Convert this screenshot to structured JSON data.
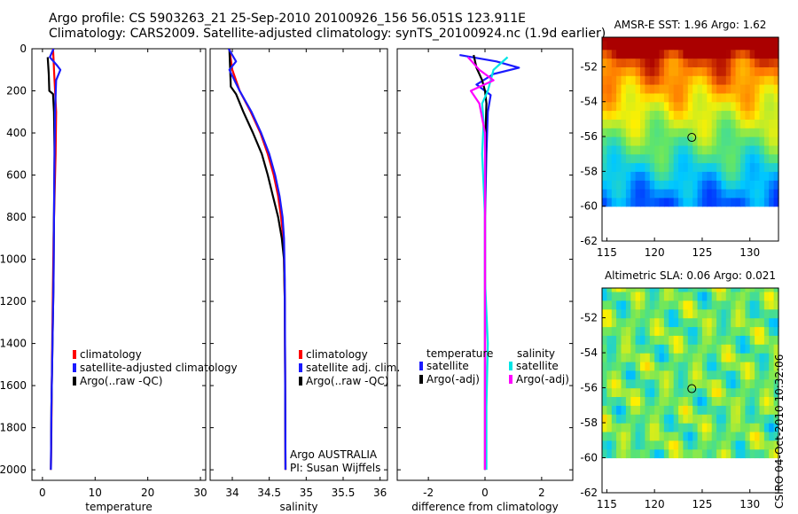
{
  "header": {
    "line1": "Argo profile: CS 5903263_21 25-Sep-2010 20100926_156 56.051S 123.911E",
    "line2": "Climatology: CARS2009. Satellite-adjusted climatology: synTS_20100924.nc (1.9d earlier)"
  },
  "colors": {
    "red": "#ff0000",
    "blue": "#1a1aff",
    "black": "#000000",
    "cyan": "#00e5e5",
    "magenta": "#ff00ff"
  },
  "depth_axis": {
    "ylim": [
      0,
      2050
    ],
    "ticks": [
      "0",
      "200",
      "400",
      "600",
      "800",
      "1000",
      "1200",
      "1400",
      "1600",
      "1800",
      "2000"
    ]
  },
  "chart_data": [
    {
      "type": "line",
      "name": "temperature-panel",
      "xlabel": "temperature",
      "xlim": [
        -2,
        31
      ],
      "xticks": [
        {
          "v": 0,
          "t": "0"
        },
        {
          "v": 10,
          "t": "10"
        },
        {
          "v": 20,
          "t": "20"
        },
        {
          "v": 30,
          "t": "30"
        }
      ],
      "legend": [
        "climatology",
        "satellite-adjusted climatology",
        "Argo(..raw -QC)"
      ],
      "series": [
        {
          "name": "climatology",
          "color": "red",
          "x": [
            2.0,
            2.1,
            2.2,
            2.4,
            2.6,
            2.5,
            2.3,
            2.1,
            2.0,
            1.9,
            1.8,
            1.7,
            1.6
          ],
          "y": [
            0,
            50,
            100,
            200,
            300,
            500,
            700,
            900,
            1100,
            1300,
            1500,
            1800,
            2000
          ]
        },
        {
          "name": "Argo(..raw -QC)",
          "color": "black",
          "x": [
            1.0,
            1.1,
            1.2,
            1.3,
            2.0,
            2.2,
            2.3,
            2.2,
            2.1,
            1.9,
            1.7,
            1.6
          ],
          "y": [
            40,
            80,
            120,
            200,
            215,
            300,
            500,
            800,
            1100,
            1400,
            1700,
            2000
          ]
        },
        {
          "name": "satellite-adjusted climatology",
          "color": "blue",
          "x": [
            2.1,
            1.4,
            2.8,
            3.4,
            2.6,
            2.4,
            2.3,
            2.2,
            2.1,
            1.9,
            1.7,
            1.6
          ],
          "y": [
            0,
            40,
            80,
            100,
            150,
            300,
            500,
            800,
            1100,
            1400,
            1700,
            2000
          ]
        }
      ]
    },
    {
      "type": "line",
      "name": "salinity-panel",
      "xlabel": "salinity",
      "xlim": [
        33.7,
        36.1
      ],
      "xticks": [
        {
          "v": 34,
          "t": "34"
        },
        {
          "v": 34.5,
          "t": "34.5"
        },
        {
          "v": 35,
          "t": "35"
        },
        {
          "v": 35.5,
          "t": "35.5"
        },
        {
          "v": 36,
          "t": "36"
        }
      ],
      "legend": [
        "climatology",
        "satellite adj. clim.",
        "Argo(..raw -QC)"
      ],
      "annotation": [
        "Argo AUSTRALIA",
        "PI: Susan Wijffels"
      ],
      "series": [
        {
          "name": "climatology",
          "color": "red",
          "x": [
            33.96,
            34.0,
            34.1,
            34.25,
            34.38,
            34.48,
            34.56,
            34.62,
            34.66,
            34.69,
            34.7,
            34.71,
            34.72
          ],
          "y": [
            0,
            100,
            200,
            300,
            400,
            500,
            600,
            700,
            800,
            900,
            1000,
            1200,
            2000
          ]
        },
        {
          "name": "Argo(..raw -QC)",
          "color": "black",
          "x": [
            33.96,
            33.98,
            34.05,
            34.15,
            34.28,
            34.4,
            34.48,
            34.55,
            34.62,
            34.67,
            34.7,
            34.71,
            34.72
          ],
          "y": [
            0,
            180,
            215,
            300,
            400,
            500,
            600,
            700,
            800,
            900,
            1000,
            1200,
            2000
          ]
        },
        {
          "name": "satellite adj. clim.",
          "color": "blue",
          "x": [
            33.95,
            34.05,
            33.96,
            34.1,
            34.26,
            34.39,
            34.5,
            34.58,
            34.64,
            34.68,
            34.7,
            34.71,
            34.72
          ],
          "y": [
            0,
            60,
            100,
            200,
            300,
            400,
            500,
            600,
            700,
            800,
            900,
            1100,
            2000
          ]
        }
      ]
    },
    {
      "type": "line",
      "name": "difference-panel",
      "xlabel": "difference from climatology",
      "xlim": [
        -3.1,
        3.1
      ],
      "xticks": [
        {
          "v": -2,
          "t": "-2"
        },
        {
          "v": 0,
          "t": "0"
        },
        {
          "v": 2,
          "t": "2"
        }
      ],
      "legend_left_title": "temperature",
      "legend_right_title": "salinity",
      "legend": [
        "satellite",
        "Argo(-adj)",
        "satellite",
        "Argo(-adj)"
      ],
      "series": [
        {
          "name": "temperature satellite",
          "color": "blue",
          "x": [
            -0.9,
            0.4,
            1.2,
            0.3,
            -0.3,
            0.2,
            0.1,
            0.05,
            0.0,
            0.0,
            0.0,
            0.0
          ],
          "y": [
            30,
            60,
            90,
            120,
            170,
            220,
            300,
            500,
            800,
            1200,
            1600,
            2000
          ]
        },
        {
          "name": "temperature Argo(-adj)",
          "color": "black",
          "x": [
            -0.4,
            -0.3,
            -0.1,
            0.0,
            0.05,
            0.02,
            0.0,
            0.0,
            0.0,
            0.0
          ],
          "y": [
            30,
            90,
            150,
            200,
            260,
            400,
            700,
            1100,
            1600,
            2000
          ]
        },
        {
          "name": "salinity satellite",
          "color": "cyan",
          "x": [
            0.8,
            0.3,
            0.2,
            0.1,
            -0.1,
            -0.05,
            -0.1,
            0.0,
            0.0,
            0.1,
            0.05,
            0.05
          ],
          "y": [
            40,
            100,
            150,
            200,
            260,
            350,
            500,
            800,
            1100,
            1400,
            1700,
            2000
          ]
        },
        {
          "name": "salinity Argo(-adj)",
          "color": "magenta",
          "x": [
            -0.6,
            -0.2,
            0.3,
            -0.5,
            -0.2,
            0.0,
            0.0,
            0.0,
            0.0
          ],
          "y": [
            40,
            100,
            150,
            200,
            260,
            400,
            800,
            1400,
            2000
          ]
        }
      ]
    },
    {
      "type": "heatmap",
      "name": "sst-map",
      "title": "AMSR-E SST: 1.96 Argo: 1.62",
      "xlim": [
        114.5,
        133
      ],
      "ylim": [
        -62,
        -50.3
      ],
      "xticks": [
        "115",
        "120",
        "125",
        "130"
      ],
      "yticks": [
        "-52",
        "-54",
        "-56",
        "-58",
        "-60",
        "-62"
      ],
      "float_position": {
        "lon": 123.911,
        "lat": -56.051
      }
    },
    {
      "type": "heatmap",
      "name": "sla-map",
      "title": "Altimetric SLA: 0.06 Argo: 0.021",
      "xlim": [
        114.5,
        133
      ],
      "ylim": [
        -62,
        -50.3
      ],
      "xticks": [
        "115",
        "120",
        "125",
        "130"
      ],
      "yticks": [
        "-52",
        "-54",
        "-56",
        "-58",
        "-60",
        "-62"
      ],
      "float_position": {
        "lon": 123.911,
        "lat": -56.051
      }
    }
  ],
  "stamp": "CSIRO 04-Oct-2010 10:32:06"
}
